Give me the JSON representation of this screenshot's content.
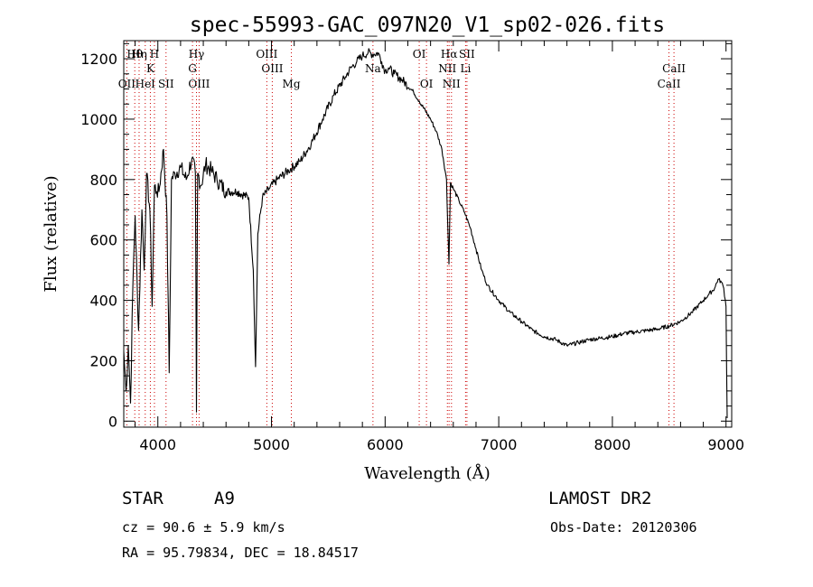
{
  "chart_data": {
    "type": "line",
    "title": "spec-55993-GAC_097N20_V1_sp02-026.fits",
    "xlabel": "Wavelength (Å)",
    "ylabel": "Flux (relative)",
    "xlim": [
      3700,
      9050
    ],
    "ylim": [
      -20,
      1260
    ],
    "x_ticks": [
      4000,
      5000,
      6000,
      7000,
      8000,
      9000
    ],
    "y_ticks": [
      0,
      200,
      400,
      600,
      800,
      1000,
      1200
    ],
    "grid": false,
    "series": [
      {
        "color": "#000000",
        "x": [
          3700,
          3720,
          3740,
          3760,
          3780,
          3800,
          3830,
          3860,
          3880,
          3900,
          3930,
          3950,
          3970,
          3990,
          4010,
          4050,
          4080,
          4100,
          4120,
          4150,
          4200,
          4250,
          4300,
          4330,
          4340,
          4350,
          4380,
          4420,
          4470,
          4520,
          4600,
          4700,
          4800,
          4840,
          4860,
          4880,
          4920,
          4980,
          5050,
          5150,
          5250,
          5350,
          5450,
          5550,
          5650,
          5700,
          5750,
          5800,
          5850,
          5900,
          5940,
          5970,
          6000,
          6030,
          6080,
          6150,
          6250,
          6300,
          6400,
          6450,
          6500,
          6540,
          6562,
          6575,
          6600,
          6650,
          6700,
          6750,
          6800,
          6850,
          6900,
          7000,
          7100,
          7200,
          7300,
          7400,
          7500,
          7600,
          7700,
          7800,
          7900,
          8000,
          8100,
          8200,
          8300,
          8400,
          8500,
          8600,
          8700,
          8800,
          8850,
          8900,
          8930,
          8960,
          8980,
          9000,
          9010
        ],
        "y": [
          230,
          100,
          250,
          60,
          450,
          680,
          300,
          700,
          500,
          820,
          700,
          380,
          780,
          760,
          760,
          900,
          680,
          160,
          800,
          820,
          840,
          800,
          870,
          820,
          30,
          820,
          780,
          850,
          830,
          800,
          760,
          760,
          740,
          500,
          180,
          620,
          740,
          770,
          800,
          830,
          860,
          920,
          1000,
          1080,
          1140,
          1170,
          1190,
          1210,
          1220,
          1215,
          1220,
          1190,
          1160,
          1170,
          1150,
          1130,
          1090,
          1060,
          1000,
          960,
          900,
          800,
          520,
          790,
          770,
          730,
          690,
          640,
          570,
          500,
          450,
          400,
          360,
          330,
          300,
          280,
          270,
          250,
          260,
          270,
          275,
          280,
          290,
          295,
          300,
          305,
          315,
          330,
          360,
          400,
          420,
          440,
          470,
          460,
          440,
          380,
          10
        ]
      }
    ],
    "spectral_lines": [
      {
        "label": "Hη",
        "wavelength": 3835
      },
      {
        "label": "H",
        "wavelength": 3970
      },
      {
        "label": "Hθ",
        "wavelength": 3797
      },
      {
        "label": "K",
        "wavelength": 3934
      },
      {
        "label": "OII",
        "wavelength": 3727
      },
      {
        "label": "HeI",
        "wavelength": 3889
      },
      {
        "label": "SII",
        "wavelength": 4072
      },
      {
        "label": "Hγ",
        "wavelength": 4340
      },
      {
        "label": "G",
        "wavelength": 4305
      },
      {
        "label": "OIII",
        "wavelength": 4363
      },
      {
        "label": "OIII",
        "wavelength": 4959
      },
      {
        "label": "OIII",
        "wavelength": 5007
      },
      {
        "label": "Mg",
        "wavelength": 5175
      },
      {
        "label": "Na",
        "wavelength": 5893
      },
      {
        "label": "OI",
        "wavelength": 6300
      },
      {
        "label": "OI",
        "wavelength": 6364
      },
      {
        "label": "Hα",
        "wavelength": 6563
      },
      {
        "label": "SII",
        "wavelength": 6720
      },
      {
        "label": "NII",
        "wavelength": 6548
      },
      {
        "label": "Li",
        "wavelength": 6708
      },
      {
        "label": "NII",
        "wavelength": 6584
      },
      {
        "label": "CaII",
        "wavelength": 8542
      },
      {
        "label": "CaII",
        "wavelength": 8498
      }
    ]
  },
  "info": {
    "object_class": "STAR",
    "subclass": "A9",
    "survey": "LAMOST DR2",
    "cz": "cz = 90.6 ± 5.9 km/s",
    "obs_date": "Obs-Date: 20120306",
    "radec": "RA =  95.79834, DEC =  18.84517"
  },
  "colors": {
    "spectrum": "#000000",
    "line_markers": "#cc0000",
    "axes": "#000000"
  }
}
